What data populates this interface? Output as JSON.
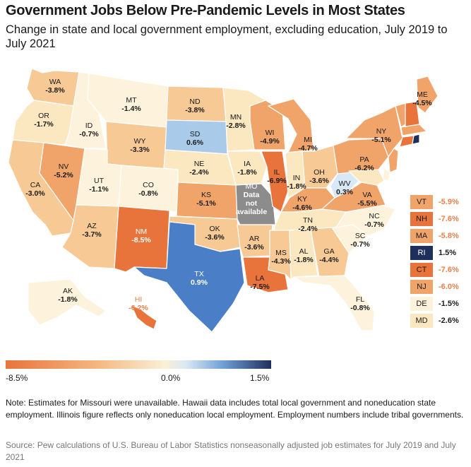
{
  "title": "Government Jobs Below Pre-Pandemic Levels in Most States",
  "subtitle": "Change in state and local government employment, excluding education, July 2019 to July 2021",
  "colors": {
    "strong_neg": "#e8743b",
    "mid_neg": "#f0a46a",
    "light_neg": "#f6c995",
    "very_light_neg": "#fbe7c0",
    "neutral": "#fdf3dc",
    "light_pos": "#a9cbe9",
    "mid_pos": "#4a7fc8",
    "dark_pos": "#1f2f5c",
    "na": "#8c8c8c",
    "border": "#ffffff"
  },
  "states": [
    {
      "ab": "WA",
      "v": "-3.8%"
    },
    {
      "ab": "OR",
      "v": "-1.7%"
    },
    {
      "ab": "CA",
      "v": "-3.0%"
    },
    {
      "ab": "NV",
      "v": "-5.2%"
    },
    {
      "ab": "ID",
      "v": "-0.7%"
    },
    {
      "ab": "MT",
      "v": "-1.4%"
    },
    {
      "ab": "WY",
      "v": "-3.3%"
    },
    {
      "ab": "UT",
      "v": "-1.1%"
    },
    {
      "ab": "CO",
      "v": "-0.8%"
    },
    {
      "ab": "AZ",
      "v": "-3.7%"
    },
    {
      "ab": "NM",
      "v": "-8.5%"
    },
    {
      "ab": "ND",
      "v": "-3.8%"
    },
    {
      "ab": "SD",
      "v": "0.6%"
    },
    {
      "ab": "NE",
      "v": "-2.4%"
    },
    {
      "ab": "KS",
      "v": "-5.1%"
    },
    {
      "ab": "OK",
      "v": "-3.6%"
    },
    {
      "ab": "TX",
      "v": "0.9%"
    },
    {
      "ab": "MN",
      "v": "-2.8%"
    },
    {
      "ab": "IA",
      "v": "-1.8%"
    },
    {
      "ab": "MO",
      "v": "Data not available"
    },
    {
      "ab": "AR",
      "v": "-3.6%"
    },
    {
      "ab": "LA",
      "v": "-7.5%"
    },
    {
      "ab": "WI",
      "v": "-4.9%"
    },
    {
      "ab": "IL",
      "v": "-6.9%"
    },
    {
      "ab": "MI",
      "v": "-4.7%"
    },
    {
      "ab": "IN",
      "v": "-1.8%"
    },
    {
      "ab": "OH",
      "v": "-3.6%"
    },
    {
      "ab": "KY",
      "v": "-4.6%"
    },
    {
      "ab": "TN",
      "v": "-2.4%"
    },
    {
      "ab": "MS",
      "v": "-4.3%"
    },
    {
      "ab": "AL",
      "v": "-1.8%"
    },
    {
      "ab": "GA",
      "v": "-4.4%"
    },
    {
      "ab": "FL",
      "v": "-0.8%"
    },
    {
      "ab": "SC",
      "v": "-0.7%"
    },
    {
      "ab": "NC",
      "v": "-0.7%"
    },
    {
      "ab": "VA",
      "v": "-5.5%"
    },
    {
      "ab": "WV",
      "v": "0.3%"
    },
    {
      "ab": "PA",
      "v": "-6.2%"
    },
    {
      "ab": "NY",
      "v": "-5.1%"
    },
    {
      "ab": "ME",
      "v": "-4.5%"
    },
    {
      "ab": "AK",
      "v": "-1.8%"
    },
    {
      "ab": "HI",
      "v": "-6.2%"
    }
  ],
  "small_states": [
    {
      "ab": "VT",
      "v": "-5.9%"
    },
    {
      "ab": "NH",
      "v": "-7.6%"
    },
    {
      "ab": "MA",
      "v": "-5.8%"
    },
    {
      "ab": "RI",
      "v": "1.5%"
    },
    {
      "ab": "CT",
      "v": "-7.6%"
    },
    {
      "ab": "NJ",
      "v": "-6.0%"
    },
    {
      "ab": "DE",
      "v": "-1.5%"
    },
    {
      "ab": "MD",
      "v": "-2.6%"
    }
  ],
  "scale": {
    "min_label": "-8.5%",
    "mid_label": "0.0%",
    "max_label": "1.5%",
    "min": -8.5,
    "max": 1.5
  },
  "note": "Note: Estimates for Missouri were unavailable. Hawaii data includes total local government and noneducation state employment. Illinois figure reflects only noneducation local employment. Employment numbers include tribal governments.",
  "source": "Source: Pew calculations of U.S. Bureau of Labor Statistics nonseasonally adjusted job estimates for July 2019 and July 2021"
}
